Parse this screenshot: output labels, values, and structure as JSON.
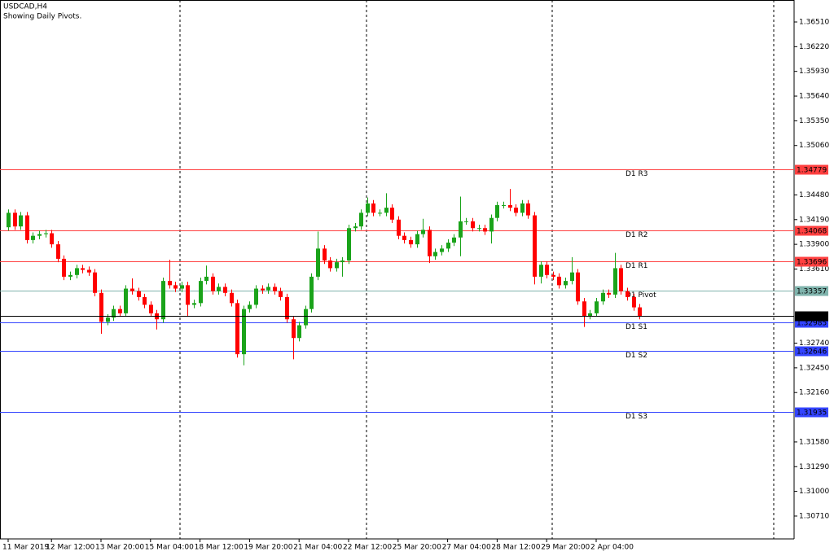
{
  "chart_data": {
    "type": "candlestick",
    "title": "USDCAD,H4",
    "subtitle": "Showing Daily Pivots.",
    "categories": [
      "11 Mar 2019",
      null,
      null,
      null,
      null,
      null,
      null,
      "12 Mar 12:00",
      null,
      null,
      null,
      null,
      null,
      null,
      null,
      "13 Mar 20:00",
      null,
      null,
      null,
      null,
      null,
      null,
      null,
      "15 Mar 04:00",
      null,
      null,
      null,
      null,
      null,
      null,
      null,
      "18 Mar 12:00",
      null,
      null,
      null,
      null,
      null,
      null,
      null,
      "19 Mar 20:00",
      null,
      null,
      null,
      null,
      null,
      null,
      null,
      "21 Mar 04:00",
      null,
      null,
      null,
      null,
      null,
      null,
      null,
      "22 Mar 12:00",
      null,
      null,
      null,
      null,
      null,
      null,
      null,
      "25 Mar 20:00",
      null,
      null,
      null,
      null,
      null,
      null,
      null,
      "27 Mar 04:00",
      null,
      null,
      null,
      null,
      null,
      null,
      null,
      "28 Mar 12:00",
      null,
      null,
      null,
      null,
      null,
      null,
      null,
      "29 Mar 20:00",
      null,
      null,
      null,
      null,
      null,
      null,
      null,
      "2 Apr 04:00",
      null,
      null,
      null,
      null,
      null,
      null,
      null
    ],
    "open": [
      1.341,
      1.3427,
      1.3411,
      1.3424,
      1.3395,
      1.34,
      1.3402,
      1.3403,
      1.339,
      1.3373,
      1.3352,
      1.3354,
      1.3362,
      1.336,
      1.3357,
      1.3333,
      1.3299,
      1.3304,
      1.3314,
      1.3309,
      1.3338,
      1.3335,
      1.3328,
      1.3319,
      1.3309,
      1.3302,
      1.3347,
      1.3342,
      1.3338,
      1.3342,
      1.3319,
      1.3321,
      1.3347,
      1.3352,
      1.3335,
      1.334,
      1.3333,
      1.3321,
      1.3261,
      1.3314,
      1.3319,
      1.3338,
      1.3336,
      1.334,
      1.3335,
      1.3328,
      1.3302,
      1.328,
      1.3295,
      1.3314,
      1.3352,
      1.3385,
      1.3371,
      1.3362,
      1.3369,
      1.3371,
      1.3409,
      1.3411,
      1.3427,
      1.3438,
      1.3427,
      1.3427,
      1.3433,
      1.3419,
      1.34,
      1.3395,
      1.339,
      1.3402,
      1.3407,
      1.3376,
      1.3381,
      1.3385,
      1.3392,
      1.3398,
      1.3417,
      1.3417,
      1.3409,
      1.3409,
      1.3405,
      1.3421,
      1.3436,
      1.3436,
      1.3433,
      1.3427,
      1.3438,
      1.3424,
      1.3352,
      1.3366,
      1.3354,
      1.3352,
      1.3342,
      1.3347,
      1.3357,
      1.3323,
      1.3306,
      1.3309,
      1.3323,
      1.3333,
      1.3331,
      1.3362,
      1.3335,
      1.3328,
      1.3316
    ],
    "high": [
      1.3431,
      1.3431,
      1.3428,
      1.3428,
      1.3404,
      1.3406,
      1.3407,
      1.3407,
      1.3394,
      1.3377,
      1.3358,
      1.3366,
      1.3366,
      1.3364,
      1.3361,
      1.3337,
      1.3308,
      1.3318,
      1.3318,
      1.3342,
      1.335,
      1.3339,
      1.3332,
      1.3323,
      1.3313,
      1.3351,
      1.3372,
      1.3346,
      1.3346,
      1.3346,
      1.3325,
      1.3351,
      1.3365,
      1.3356,
      1.3344,
      1.3344,
      1.3337,
      1.3325,
      1.3318,
      1.3323,
      1.3342,
      1.3342,
      1.3344,
      1.3344,
      1.3339,
      1.3332,
      1.3306,
      1.3299,
      1.3318,
      1.3356,
      1.3405,
      1.3389,
      1.3375,
      1.3373,
      1.3375,
      1.3413,
      1.3415,
      1.3431,
      1.3445,
      1.3442,
      1.3431,
      1.345,
      1.3437,
      1.3423,
      1.3404,
      1.3399,
      1.3406,
      1.342,
      1.3411,
      1.3385,
      1.3389,
      1.3396,
      1.3402,
      1.3446,
      1.3421,
      1.3421,
      1.3413,
      1.3413,
      1.3425,
      1.344,
      1.344,
      1.3455,
      1.3437,
      1.3442,
      1.3442,
      1.3428,
      1.337,
      1.337,
      1.3358,
      1.3356,
      1.3351,
      1.3375,
      1.3361,
      1.3327,
      1.3313,
      1.3327,
      1.3337,
      1.3337,
      1.338,
      1.3366,
      1.3339,
      1.3332,
      1.332
    ],
    "low": [
      1.3406,
      1.3407,
      1.3407,
      1.3391,
      1.3391,
      1.3396,
      1.3398,
      1.3386,
      1.3369,
      1.3348,
      1.3348,
      1.335,
      1.3356,
      1.3353,
      1.3329,
      1.3285,
      1.3295,
      1.33,
      1.3305,
      1.3305,
      1.3331,
      1.3324,
      1.3315,
      1.3305,
      1.329,
      1.3298,
      1.3338,
      1.3334,
      1.3334,
      1.3305,
      1.3315,
      1.3317,
      1.3343,
      1.3331,
      1.3331,
      1.3329,
      1.3317,
      1.3257,
      1.3248,
      1.331,
      1.3315,
      1.3332,
      1.3332,
      1.3331,
      1.3324,
      1.3298,
      1.3255,
      1.3276,
      1.3291,
      1.331,
      1.3348,
      1.3367,
      1.3358,
      1.3358,
      1.3352,
      1.3367,
      1.3405,
      1.3407,
      1.3423,
      1.3423,
      1.3423,
      1.3423,
      1.3415,
      1.3396,
      1.3391,
      1.3386,
      1.3386,
      1.3398,
      1.3368,
      1.3372,
      1.3377,
      1.3381,
      1.3388,
      1.3376,
      1.3413,
      1.3405,
      1.3405,
      1.3401,
      1.3391,
      1.3417,
      1.3432,
      1.3429,
      1.3423,
      1.3423,
      1.342,
      1.3343,
      1.3344,
      1.335,
      1.3348,
      1.3338,
      1.3338,
      1.3343,
      1.3319,
      1.3293,
      1.3302,
      1.3305,
      1.3319,
      1.3327,
      1.3327,
      1.3331,
      1.3324,
      1.3312,
      1.3302
    ],
    "close": [
      1.3427,
      1.3411,
      1.3424,
      1.3395,
      1.34,
      1.3402,
      1.3403,
      1.339,
      1.3373,
      1.3352,
      1.3354,
      1.3362,
      1.336,
      1.3357,
      1.3333,
      1.3299,
      1.3304,
      1.3314,
      1.3309,
      1.3338,
      1.3335,
      1.3328,
      1.3319,
      1.3309,
      1.3302,
      1.3347,
      1.3342,
      1.3338,
      1.3342,
      1.3319,
      1.3321,
      1.3347,
      1.3352,
      1.3335,
      1.334,
      1.3333,
      1.3321,
      1.3261,
      1.3314,
      1.3319,
      1.3338,
      1.3336,
      1.334,
      1.3335,
      1.3328,
      1.3302,
      1.328,
      1.3295,
      1.3314,
      1.3352,
      1.3385,
      1.3371,
      1.3362,
      1.3369,
      1.3371,
      1.3409,
      1.3411,
      1.3427,
      1.3438,
      1.3427,
      1.3427,
      1.3433,
      1.3419,
      1.34,
      1.3395,
      1.339,
      1.3402,
      1.3407,
      1.3376,
      1.3381,
      1.3385,
      1.3392,
      1.3398,
      1.3417,
      1.3417,
      1.3409,
      1.3409,
      1.3405,
      1.3421,
      1.3436,
      1.3436,
      1.3433,
      1.3427,
      1.3438,
      1.3424,
      1.3352,
      1.3366,
      1.3354,
      1.3352,
      1.3342,
      1.3347,
      1.3357,
      1.3323,
      1.3306,
      1.3309,
      1.3323,
      1.3333,
      1.3331,
      1.3362,
      1.3335,
      1.3328,
      1.3316,
      1.3306
    ],
    "up_color": "#1aa31a",
    "down_color": "#ff0000",
    "ylim": [
      1.30442,
      1.36768
    ],
    "yticks": [
      {
        "value": 1.3651,
        "label": "1.36510"
      },
      {
        "value": 1.3622,
        "label": "1.36220"
      },
      {
        "value": 1.3593,
        "label": "1.35930"
      },
      {
        "value": 1.3564,
        "label": "1.35640"
      },
      {
        "value": 1.3535,
        "label": "1.35350"
      },
      {
        "value": 1.3506,
        "label": "1.35060"
      },
      {
        "value": 1.3448,
        "label": "1.34480"
      },
      {
        "value": 1.3419,
        "label": "1.34190"
      },
      {
        "value": 1.339,
        "label": "1.33900"
      },
      {
        "value": 1.3361,
        "label": "1.33610"
      },
      {
        "value": 1.3274,
        "label": "1.32740"
      },
      {
        "value": 1.3245,
        "label": "1.32450"
      },
      {
        "value": 1.3216,
        "label": "1.32160"
      },
      {
        "value": 1.3158,
        "label": "1.31580"
      },
      {
        "value": 1.3129,
        "label": "1.31290"
      },
      {
        "value": 1.31,
        "label": "1.31000"
      },
      {
        "value": 1.3071,
        "label": "1.30710"
      }
    ],
    "levels": [
      {
        "name": "D1 R3",
        "value": 1.34779,
        "color": "#ff4040"
      },
      {
        "name": "D1 R2",
        "value": 1.34068,
        "color": "#ff4040"
      },
      {
        "name": "D1 R1",
        "value": 1.33696,
        "color": "#ff4040"
      },
      {
        "name": "D1 Pivot",
        "value": 1.33357,
        "color": "#7fb3ac"
      },
      {
        "name": "D1 S1",
        "value": 1.32985,
        "color": "#3344ff"
      },
      {
        "name": "D1 S2",
        "value": 1.32646,
        "color": "#3344ff"
      },
      {
        "name": "D1 S3",
        "value": 1.31935,
        "color": "#3344ff"
      }
    ],
    "last_price": 1.33061,
    "last_color": "#000000"
  }
}
